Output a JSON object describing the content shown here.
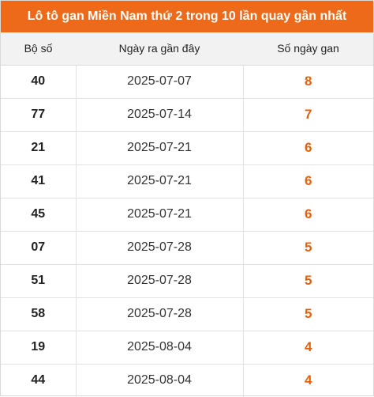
{
  "title": "Lô tô gan Miền Nam thứ 2 trong 10 lần quay gần nhất",
  "colors": {
    "header_bg": "#ed6a1a",
    "days_text": "#e0620f"
  },
  "columns": [
    "Bộ số",
    "Ngày ra gần đây",
    "Số ngày gan"
  ],
  "rows": [
    {
      "number": "40",
      "date": "2025-07-07",
      "days": "8"
    },
    {
      "number": "77",
      "date": "2025-07-14",
      "days": "7"
    },
    {
      "number": "21",
      "date": "2025-07-21",
      "days": "6"
    },
    {
      "number": "41",
      "date": "2025-07-21",
      "days": "6"
    },
    {
      "number": "45",
      "date": "2025-07-21",
      "days": "6"
    },
    {
      "number": "07",
      "date": "2025-07-28",
      "days": "5"
    },
    {
      "number": "51",
      "date": "2025-07-28",
      "days": "5"
    },
    {
      "number": "58",
      "date": "2025-07-28",
      "days": "5"
    },
    {
      "number": "19",
      "date": "2025-08-04",
      "days": "4"
    },
    {
      "number": "44",
      "date": "2025-08-04",
      "days": "4"
    }
  ]
}
